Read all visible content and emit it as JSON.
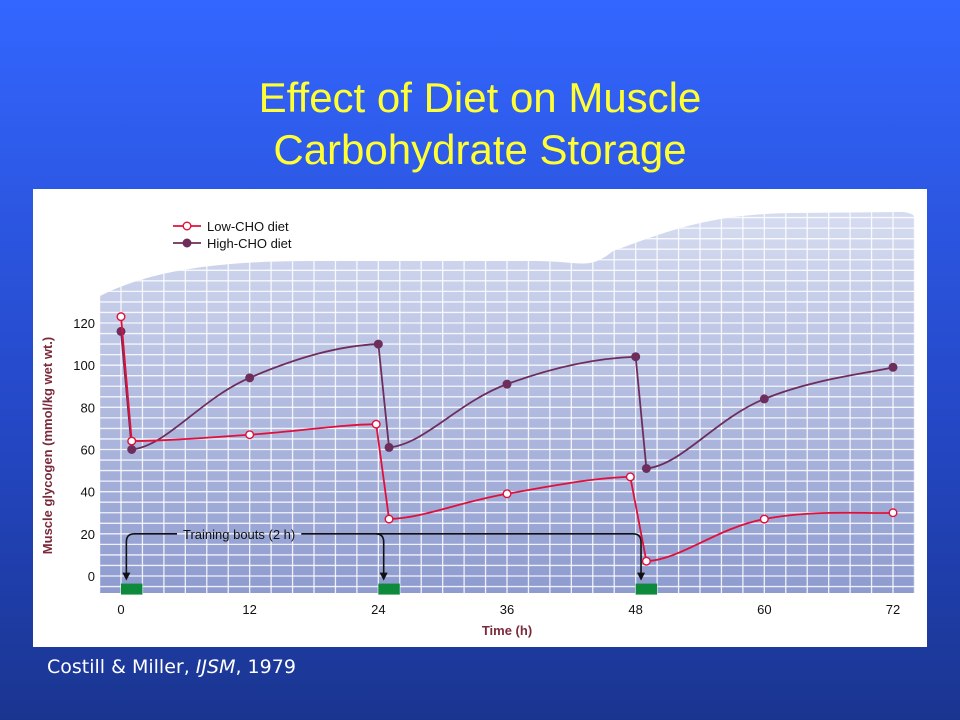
{
  "slide": {
    "title_line1": "Effect of Diet on Muscle",
    "title_line2": "Carbohydrate Storage",
    "citation": {
      "authors": "Costill & Miller,",
      "journal": "IJSM",
      "year": ", 1979"
    }
  },
  "colors": {
    "background": "#3366ff",
    "title": "#ffff33",
    "low_cho": "#e0103a",
    "high_cho": "#6e2e5c",
    "training_bar": "#0e8a3c",
    "axis_label": "#7a2a3a",
    "grid_fill": "#9aa6d4"
  },
  "chart_data": {
    "type": "line",
    "xlabel": "Time (h)",
    "ylabel": "Muscle glycogen (mmol/kg wet wt.)",
    "xlim": [
      0,
      72
    ],
    "ylim": [
      0,
      120
    ],
    "x_ticks": [
      0,
      12,
      24,
      36,
      48,
      60,
      72
    ],
    "y_ticks": [
      0,
      20,
      40,
      60,
      80,
      100,
      120
    ],
    "grid": true,
    "legend_position": "top-left",
    "series": [
      {
        "name": "Low-CHO diet",
        "marker": "open-circle",
        "points": [
          [
            0,
            123
          ],
          [
            1,
            64
          ],
          [
            12,
            67
          ],
          [
            23.8,
            72
          ],
          [
            25,
            27
          ],
          [
            36,
            39
          ],
          [
            47.5,
            47
          ],
          [
            49,
            7
          ],
          [
            60,
            27
          ],
          [
            72,
            30
          ]
        ]
      },
      {
        "name": "High-CHO diet",
        "marker": "filled-circle",
        "points": [
          [
            0,
            116
          ],
          [
            1,
            60
          ],
          [
            12,
            94
          ],
          [
            24,
            110
          ],
          [
            25,
            61
          ],
          [
            36,
            91
          ],
          [
            48,
            104
          ],
          [
            49,
            51
          ],
          [
            60,
            84
          ],
          [
            72,
            99
          ]
        ]
      }
    ],
    "annotation": {
      "text": "Training bouts (2 h)",
      "training_bouts": [
        [
          0,
          2
        ],
        [
          24,
          26
        ],
        [
          48,
          50
        ]
      ]
    }
  }
}
